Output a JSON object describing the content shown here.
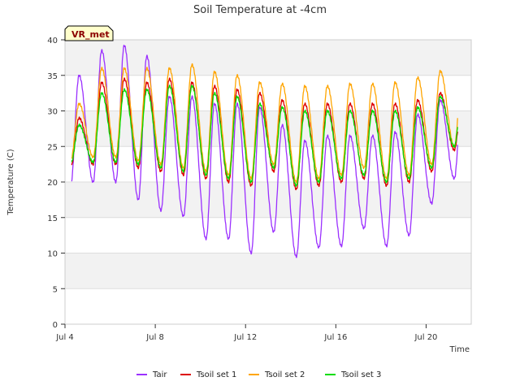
{
  "chart_data": {
    "type": "line",
    "title": "Soil Temperature at -4cm",
    "xlabel": "Time",
    "ylabel": "Temperature (C)",
    "badge": "VR_met",
    "xlim": [
      4.0,
      22.0
    ],
    "ylim": [
      0,
      40
    ],
    "yticks": [
      0,
      5,
      10,
      15,
      20,
      25,
      30,
      35,
      40
    ],
    "xticks": [
      {
        "value": 4,
        "label": "Jul 4"
      },
      {
        "value": 8,
        "label": "Jul 8"
      },
      {
        "value": 12,
        "label": "Jul 12"
      },
      {
        "value": 16,
        "label": "Jul 16"
      },
      {
        "value": 20,
        "label": "Jul 20"
      }
    ],
    "grid": true,
    "legend_position": "bottom",
    "x_units": "day of July (fractional)",
    "daily": {
      "days": [
        4,
        5,
        6,
        7,
        8,
        9,
        10,
        11,
        12,
        13,
        14,
        15,
        16,
        17,
        18,
        19,
        20,
        21
      ],
      "peak_hour": 15,
      "trough_hour": 6,
      "start": 4.3,
      "end": 21.4
    },
    "series": [
      {
        "name": "Tair",
        "color": "#9b30ff",
        "max": [
          35.0,
          38.5,
          39.2,
          37.7,
          32.0,
          32.0,
          31.0,
          31.0,
          30.5,
          28.0,
          25.8,
          26.5,
          26.5,
          26.5,
          27.0,
          29.5,
          31.5,
          34.8
        ],
        "min": [
          19.5,
          20.0,
          20.0,
          17.5,
          16.0,
          15.2,
          12.0,
          12.0,
          10.0,
          13.0,
          9.5,
          10.8,
          11.0,
          13.5,
          11.0,
          12.5,
          17.0,
          20.5
        ]
      },
      {
        "name": "Tsoil set 1",
        "color": "#dd0000",
        "max": [
          29.0,
          34.0,
          34.5,
          34.0,
          34.5,
          34.0,
          33.5,
          33.0,
          32.5,
          31.5,
          31.0,
          31.0,
          31.0,
          31.0,
          31.0,
          31.5,
          32.5,
          33.0
        ],
        "min": [
          22.0,
          22.5,
          22.5,
          22.0,
          21.5,
          21.0,
          20.5,
          20.0,
          19.5,
          21.5,
          19.0,
          19.5,
          20.0,
          20.5,
          19.5,
          20.0,
          21.5,
          24.5
        ]
      },
      {
        "name": "Tsoil set 2",
        "color": "#ffa500",
        "max": [
          31.0,
          36.0,
          36.0,
          36.0,
          36.0,
          36.5,
          35.5,
          35.0,
          34.0,
          33.8,
          33.5,
          33.5,
          33.8,
          33.8,
          34.0,
          34.7,
          35.6,
          37.0
        ],
        "min": [
          23.0,
          23.5,
          23.5,
          23.0,
          22.5,
          22.0,
          21.5,
          21.0,
          20.5,
          22.5,
          20.0,
          20.5,
          21.0,
          22.0,
          20.5,
          21.0,
          22.5,
          25.0
        ]
      },
      {
        "name": "Tsoil set 3",
        "color": "#00dd00",
        "max": [
          28.0,
          32.5,
          33.0,
          33.0,
          33.5,
          33.5,
          32.5,
          32.0,
          31.0,
          30.5,
          30.0,
          30.0,
          30.0,
          30.0,
          30.0,
          30.5,
          32.0,
          34.0
        ],
        "min": [
          22.5,
          22.8,
          22.8,
          22.5,
          22.0,
          21.5,
          21.0,
          20.5,
          20.0,
          22.0,
          19.5,
          20.0,
          20.5,
          21.0,
          20.0,
          20.5,
          22.0,
          25.0
        ]
      }
    ]
  }
}
